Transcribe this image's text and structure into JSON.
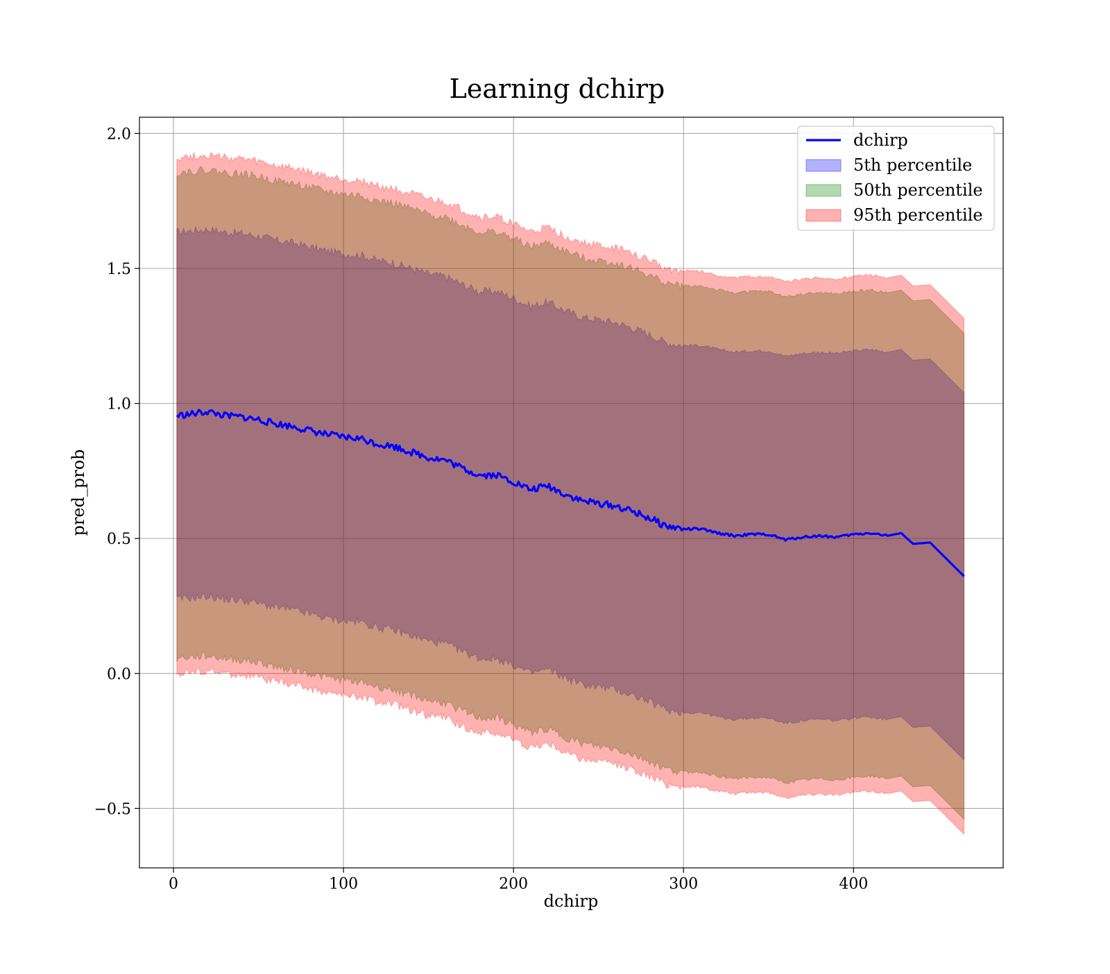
{
  "chart_data": {
    "type": "area",
    "title": "Learning dchirp",
    "xlabel": "dchirp",
    "ylabel": "pred_prob",
    "xlim": [
      -20,
      488
    ],
    "ylim": [
      -0.72,
      2.06
    ],
    "xticks": [
      0,
      100,
      200,
      300,
      400
    ],
    "yticks": [
      -0.5,
      0.0,
      0.5,
      1.0,
      1.5,
      2.0
    ],
    "xtick_labels": [
      "0",
      "100",
      "200",
      "300",
      "400"
    ],
    "ytick_labels": [
      "−0.5",
      "0.0",
      "0.5",
      "1.0",
      "1.5",
      "2.0"
    ],
    "grid": true,
    "legend_position": "top-right",
    "x": [
      2,
      10,
      20,
      30,
      40,
      50,
      60,
      70,
      80,
      90,
      100,
      110,
      120,
      130,
      140,
      150,
      160,
      170,
      180,
      190,
      200,
      210,
      220,
      230,
      240,
      250,
      260,
      270,
      280,
      290,
      300,
      310,
      320,
      330,
      340,
      350,
      360,
      370,
      380,
      390,
      400,
      410,
      420,
      428,
      435,
      445,
      465
    ],
    "series": [
      {
        "name": "dchirp",
        "kind": "line",
        "color": "#0000ff",
        "values": [
          0.955,
          0.96,
          0.97,
          0.955,
          0.95,
          0.94,
          0.925,
          0.915,
          0.9,
          0.885,
          0.875,
          0.87,
          0.85,
          0.84,
          0.82,
          0.8,
          0.79,
          0.76,
          0.735,
          0.735,
          0.71,
          0.68,
          0.695,
          0.665,
          0.64,
          0.63,
          0.62,
          0.6,
          0.575,
          0.545,
          0.535,
          0.535,
          0.52,
          0.51,
          0.515,
          0.515,
          0.495,
          0.505,
          0.51,
          0.505,
          0.515,
          0.52,
          0.51,
          0.52,
          0.48,
          0.485,
          0.36
        ]
      },
      {
        "name": "5th percentile",
        "kind": "band",
        "color": "#0000ff",
        "opacity": 0.3,
        "upper": [
          1.635,
          1.64,
          1.645,
          1.635,
          1.63,
          1.62,
          1.605,
          1.595,
          1.58,
          1.565,
          1.555,
          1.55,
          1.53,
          1.52,
          1.5,
          1.48,
          1.47,
          1.44,
          1.415,
          1.415,
          1.39,
          1.36,
          1.375,
          1.345,
          1.32,
          1.31,
          1.3,
          1.28,
          1.255,
          1.225,
          1.215,
          1.215,
          1.2,
          1.19,
          1.195,
          1.195,
          1.175,
          1.185,
          1.19,
          1.185,
          1.195,
          1.2,
          1.19,
          1.2,
          1.16,
          1.165,
          1.04
        ],
        "lower": [
          0.275,
          0.28,
          0.285,
          0.275,
          0.27,
          0.26,
          0.245,
          0.235,
          0.22,
          0.205,
          0.195,
          0.19,
          0.17,
          0.16,
          0.14,
          0.12,
          0.11,
          0.08,
          0.055,
          0.055,
          0.03,
          0.0,
          0.015,
          -0.015,
          -0.04,
          -0.05,
          -0.06,
          -0.08,
          -0.105,
          -0.135,
          -0.145,
          -0.145,
          -0.16,
          -0.17,
          -0.165,
          -0.165,
          -0.185,
          -0.175,
          -0.17,
          -0.175,
          -0.165,
          -0.16,
          -0.17,
          -0.16,
          -0.2,
          -0.195,
          -0.32
        ]
      },
      {
        "name": "50th percentile",
        "kind": "band",
        "color": "#008000",
        "opacity": 0.3,
        "upper": [
          1.855,
          1.86,
          1.865,
          1.855,
          1.85,
          1.84,
          1.825,
          1.815,
          1.8,
          1.785,
          1.775,
          1.77,
          1.75,
          1.74,
          1.72,
          1.7,
          1.69,
          1.66,
          1.635,
          1.635,
          1.61,
          1.58,
          1.595,
          1.565,
          1.54,
          1.53,
          1.52,
          1.5,
          1.475,
          1.445,
          1.435,
          1.435,
          1.42,
          1.41,
          1.415,
          1.415,
          1.395,
          1.405,
          1.41,
          1.405,
          1.415,
          1.42,
          1.41,
          1.42,
          1.38,
          1.385,
          1.26
        ],
        "lower": [
          0.055,
          0.06,
          0.065,
          0.055,
          0.05,
          0.04,
          0.025,
          0.015,
          0.0,
          -0.015,
          -0.025,
          -0.03,
          -0.05,
          -0.06,
          -0.08,
          -0.1,
          -0.11,
          -0.14,
          -0.165,
          -0.165,
          -0.19,
          -0.22,
          -0.205,
          -0.235,
          -0.26,
          -0.27,
          -0.28,
          -0.3,
          -0.325,
          -0.355,
          -0.365,
          -0.365,
          -0.38,
          -0.39,
          -0.385,
          -0.385,
          -0.405,
          -0.395,
          -0.39,
          -0.395,
          -0.385,
          -0.38,
          -0.39,
          -0.38,
          -0.42,
          -0.415,
          -0.54
        ]
      },
      {
        "name": "95th percentile",
        "kind": "band",
        "color": "#ff0000",
        "opacity": 0.3,
        "upper": [
          1.91,
          1.915,
          1.92,
          1.91,
          1.905,
          1.895,
          1.88,
          1.87,
          1.855,
          1.84,
          1.83,
          1.825,
          1.805,
          1.795,
          1.775,
          1.755,
          1.745,
          1.715,
          1.69,
          1.69,
          1.665,
          1.635,
          1.65,
          1.62,
          1.595,
          1.585,
          1.575,
          1.555,
          1.53,
          1.5,
          1.49,
          1.49,
          1.475,
          1.465,
          1.47,
          1.47,
          1.45,
          1.46,
          1.465,
          1.46,
          1.47,
          1.475,
          1.465,
          1.475,
          1.435,
          1.44,
          1.315
        ],
        "lower": [
          0.0,
          0.005,
          0.01,
          0.0,
          -0.005,
          -0.015,
          -0.03,
          -0.04,
          -0.055,
          -0.07,
          -0.08,
          -0.085,
          -0.105,
          -0.115,
          -0.135,
          -0.155,
          -0.165,
          -0.195,
          -0.22,
          -0.22,
          -0.245,
          -0.275,
          -0.26,
          -0.29,
          -0.315,
          -0.325,
          -0.335,
          -0.355,
          -0.38,
          -0.41,
          -0.42,
          -0.42,
          -0.435,
          -0.445,
          -0.44,
          -0.44,
          -0.46,
          -0.45,
          -0.445,
          -0.45,
          -0.44,
          -0.435,
          -0.445,
          -0.435,
          -0.475,
          -0.47,
          -0.595
        ]
      }
    ]
  }
}
